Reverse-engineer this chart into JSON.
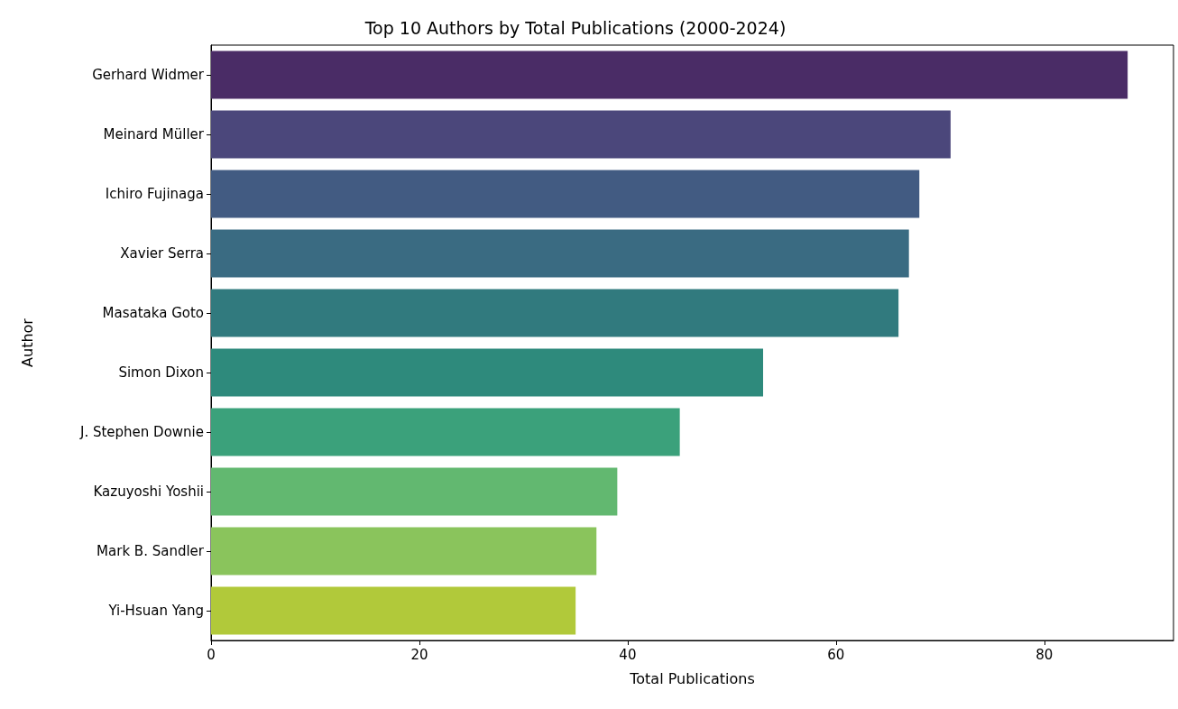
{
  "chart_data": {
    "type": "bar",
    "orientation": "horizontal",
    "title": "Top 10 Authors by Total Publications (2000-2024)",
    "xlabel": "Total Publications",
    "ylabel": "Author",
    "categories": [
      "Gerhard Widmer",
      "Meinard Müller",
      "Ichiro Fujinaga",
      "Xavier Serra",
      "Masataka Goto",
      "Simon Dixon",
      "J. Stephen Downie",
      "Kazuyoshi Yoshii",
      "Mark B. Sandler",
      "Yi-Hsuan Yang"
    ],
    "values": [
      88,
      71,
      68,
      67,
      66,
      53,
      45,
      39,
      37,
      35
    ],
    "colors": [
      "#4a2c66",
      "#4b477b",
      "#425b82",
      "#3a6b82",
      "#317a7e",
      "#2e8a7c",
      "#3ba17b",
      "#62b870",
      "#8ac45c",
      "#b1c93a"
    ],
    "xlim": [
      0,
      92.4
    ],
    "xticks": [
      0,
      20,
      40,
      60,
      80
    ]
  }
}
